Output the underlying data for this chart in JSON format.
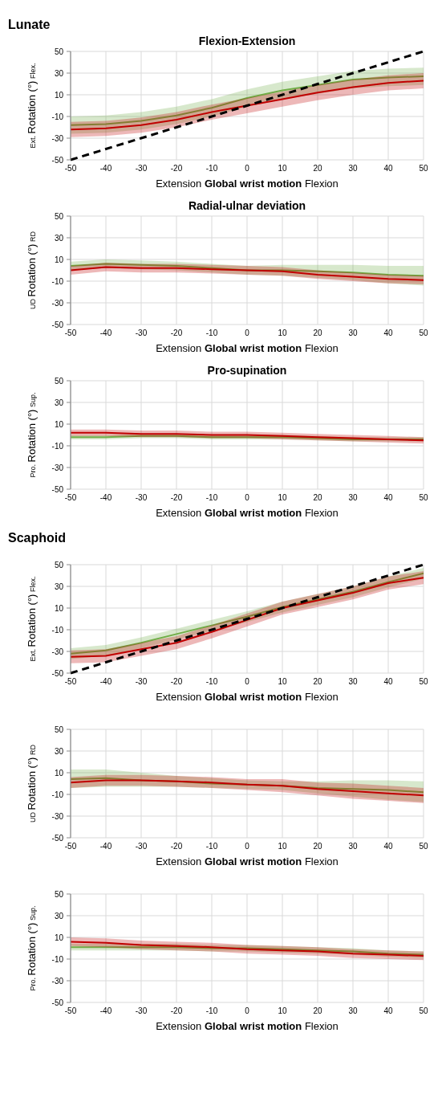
{
  "chart_data": [
    {
      "type": "line",
      "title": "Flexion-Extension",
      "xlabel": "Extension Global wrist motion Flexion",
      "ylabel": "Ext. Rotation (°) Flex.",
      "annotations": [
        "Lunate"
      ],
      "xlim": [
        -50,
        50
      ],
      "ylim": [
        -50,
        50
      ],
      "xticks": [
        -50,
        -40,
        -30,
        -20,
        -10,
        0,
        10,
        20,
        30,
        40,
        50
      ],
      "yticks": [
        50,
        30,
        10,
        -10,
        -30,
        -50
      ],
      "grid": true,
      "x": [
        -50,
        -40,
        -30,
        -20,
        -10,
        0,
        10,
        20,
        30,
        40,
        50
      ],
      "series": [
        {
          "color": "#70ad47",
          "values": [
            -18,
            -17,
            -14,
            -9,
            -2,
            7,
            14,
            19,
            24,
            26,
            27
          ],
          "lower": [
            -26,
            -25,
            -22,
            -17,
            -10,
            -1,
            6,
            11,
            16,
            18,
            19
          ],
          "upper": [
            -10,
            -9,
            -6,
            -1,
            6,
            15,
            22,
            27,
            32,
            34,
            35
          ]
        },
        {
          "color": "#c00000",
          "values": [
            -22,
            -21,
            -18,
            -13,
            -6,
            0,
            6,
            12,
            17,
            21,
            23
          ],
          "lower": [
            -29,
            -28,
            -25,
            -20,
            -13,
            -7,
            -1,
            5,
            10,
            14,
            16
          ],
          "upper": [
            -15,
            -14,
            -11,
            -6,
            1,
            7,
            13,
            19,
            24,
            28,
            30
          ]
        },
        {
          "color": "#000000",
          "line_style": "dashed",
          "values": [
            -50,
            -40,
            -30,
            -20,
            -10,
            0,
            10,
            20,
            30,
            40,
            50
          ]
        }
      ]
    },
    {
      "type": "line",
      "title": "Radial-ulnar deviation",
      "xlabel": "Extension Global wrist motion Flexion",
      "ylabel": "UD Rotation (°) RD",
      "xlim": [
        -50,
        50
      ],
      "ylim": [
        -50,
        50
      ],
      "xticks": [
        -50,
        -40,
        -30,
        -20,
        -10,
        0,
        10,
        20,
        30,
        40,
        50
      ],
      "yticks": [
        50,
        30,
        10,
        -10,
        -30,
        -50
      ],
      "grid": true,
      "x": [
        -50,
        -40,
        -30,
        -20,
        -10,
        0,
        10,
        20,
        30,
        40,
        50
      ],
      "series": [
        {
          "color": "#70ad47",
          "values": [
            4,
            6,
            5,
            4,
            2,
            0,
            0,
            -1,
            -2,
            -4,
            -5
          ],
          "lower": [
            0,
            2,
            1,
            0,
            -2,
            -4,
            -5,
            -7,
            -9,
            -12,
            -14
          ],
          "upper": [
            8,
            10,
            9,
            8,
            6,
            4,
            5,
            5,
            5,
            4,
            4
          ]
        },
        {
          "color": "#c00000",
          "values": [
            0,
            3,
            2,
            2,
            1,
            0,
            -1,
            -4,
            -6,
            -8,
            -9
          ],
          "lower": [
            -4,
            -1,
            -2,
            -2,
            -3,
            -4,
            -5,
            -8,
            -10,
            -12,
            -13
          ],
          "upper": [
            4,
            7,
            6,
            6,
            5,
            4,
            3,
            0,
            -2,
            -4,
            -5
          ]
        }
      ]
    },
    {
      "type": "line",
      "title": "Pro-supination",
      "xlabel": "Extension Global wrist motion Flexion",
      "ylabel": "Pro. Rotation (°) Sup.",
      "xlim": [
        -50,
        50
      ],
      "ylim": [
        -50,
        50
      ],
      "xticks": [
        -50,
        -40,
        -30,
        -20,
        -10,
        0,
        10,
        20,
        30,
        40,
        50
      ],
      "yticks": [
        50,
        30,
        10,
        -10,
        -30,
        -50
      ],
      "grid": true,
      "x": [
        -50,
        -40,
        -30,
        -20,
        -10,
        0,
        10,
        20,
        30,
        40,
        50
      ],
      "series": [
        {
          "color": "#70ad47",
          "values": [
            -2,
            -2,
            -1,
            -1,
            -2,
            -2,
            -2,
            -3,
            -4,
            -4,
            -4
          ],
          "lower": [
            -4,
            -4,
            -3,
            -3,
            -4,
            -4,
            -4,
            -5,
            -6,
            -6,
            -6
          ],
          "upper": [
            0,
            0,
            1,
            1,
            0,
            0,
            0,
            -1,
            -2,
            -2,
            -2
          ]
        },
        {
          "color": "#c00000",
          "values": [
            2,
            2,
            1,
            1,
            0,
            0,
            -1,
            -2,
            -3,
            -4,
            -5
          ],
          "lower": [
            -1,
            -1,
            -2,
            -2,
            -3,
            -3,
            -4,
            -5,
            -6,
            -7,
            -8
          ],
          "upper": [
            5,
            5,
            4,
            4,
            3,
            3,
            2,
            1,
            0,
            -1,
            -2
          ]
        }
      ]
    },
    {
      "type": "line",
      "xlabel": "Extension Global wrist motion Flexion",
      "ylabel": "Ext. Rotation (°) Flex.",
      "annotations": [
        "Scaphoid"
      ],
      "xlim": [
        -50,
        50
      ],
      "ylim": [
        -50,
        50
      ],
      "xticks": [
        -50,
        -40,
        -30,
        -20,
        -10,
        0,
        10,
        20,
        30,
        40,
        50
      ],
      "yticks": [
        50,
        30,
        10,
        -10,
        -30,
        -50
      ],
      "grid": true,
      "x": [
        -50,
        -40,
        -30,
        -20,
        -10,
        0,
        10,
        20,
        30,
        40,
        50
      ],
      "series": [
        {
          "color": "#70ad47",
          "values": [
            -32,
            -29,
            -22,
            -14,
            -6,
            2,
            11,
            18,
            25,
            34,
            42
          ],
          "lower": [
            -37,
            -34,
            -27,
            -19,
            -11,
            -3,
            6,
            13,
            20,
            29,
            37
          ],
          "upper": [
            -27,
            -24,
            -17,
            -9,
            -1,
            7,
            16,
            23,
            30,
            39,
            47
          ]
        },
        {
          "color": "#c00000",
          "values": [
            -35,
            -34,
            -28,
            -22,
            -12,
            -1,
            10,
            17,
            24,
            33,
            38
          ],
          "lower": [
            -41,
            -40,
            -34,
            -28,
            -18,
            -7,
            4,
            11,
            18,
            27,
            32
          ],
          "upper": [
            -29,
            -28,
            -22,
            -16,
            -6,
            5,
            16,
            23,
            30,
            39,
            44
          ]
        },
        {
          "color": "#000000",
          "line_style": "dashed",
          "values": [
            -50,
            -40,
            -30,
            -20,
            -10,
            0,
            10,
            20,
            30,
            40,
            50
          ]
        }
      ]
    },
    {
      "type": "line",
      "xlabel": "Extension Global wrist motion Flexion",
      "ylabel": "UD Rotation (°) RD",
      "xlim": [
        -50,
        50
      ],
      "ylim": [
        -50,
        50
      ],
      "xticks": [
        -50,
        -40,
        -30,
        -20,
        -10,
        0,
        10,
        20,
        30,
        40,
        50
      ],
      "yticks": [
        50,
        30,
        10,
        -10,
        -30,
        -50
      ],
      "grid": true,
      "x": [
        -50,
        -40,
        -30,
        -20,
        -10,
        0,
        10,
        20,
        30,
        40,
        50
      ],
      "series": [
        {
          "color": "#70ad47",
          "values": [
            4,
            5,
            3,
            2,
            0,
            -1,
            -2,
            -4,
            -5,
            -6,
            -8
          ],
          "lower": [
            -4,
            -3,
            -3,
            -3,
            -4,
            -5,
            -6,
            -9,
            -12,
            -15,
            -17
          ],
          "upper": [
            13,
            13,
            10,
            7,
            5,
            3,
            2,
            2,
            3,
            3,
            2
          ]
        },
        {
          "color": "#c00000",
          "values": [
            1,
            3,
            3,
            2,
            1,
            -1,
            -2,
            -5,
            -7,
            -9,
            -11
          ],
          "lower": [
            -4,
            -2,
            -2,
            -3,
            -4,
            -6,
            -8,
            -11,
            -14,
            -16,
            -18
          ],
          "upper": [
            6,
            8,
            8,
            7,
            6,
            4,
            4,
            1,
            0,
            -2,
            -4
          ]
        }
      ]
    },
    {
      "type": "line",
      "xlabel": "Extension Global wrist motion Flexion",
      "ylabel": "Pro. Rotation (°) Sup.",
      "xlim": [
        -50,
        50
      ],
      "ylim": [
        -50,
        50
      ],
      "xticks": [
        -50,
        -40,
        -30,
        -20,
        -10,
        0,
        10,
        20,
        30,
        40,
        50
      ],
      "yticks": [
        50,
        30,
        10,
        -10,
        -30,
        -50
      ],
      "grid": true,
      "x": [
        -50,
        -40,
        -30,
        -20,
        -10,
        0,
        10,
        20,
        30,
        40,
        50
      ],
      "series": [
        {
          "color": "#70ad47",
          "values": [
            1,
            1,
            1,
            1,
            0,
            0,
            -1,
            -2,
            -3,
            -5,
            -6
          ],
          "lower": [
            -2,
            -2,
            -2,
            -2,
            -3,
            -3,
            -4,
            -5,
            -6,
            -8,
            -9
          ],
          "upper": [
            4,
            4,
            4,
            4,
            3,
            3,
            2,
            1,
            0,
            -2,
            -3
          ]
        },
        {
          "color": "#c00000",
          "values": [
            6,
            5,
            3,
            2,
            1,
            -1,
            -2,
            -3,
            -5,
            -6,
            -7
          ],
          "lower": [
            2,
            1,
            -1,
            -2,
            -3,
            -5,
            -6,
            -7,
            -9,
            -10,
            -11
          ],
          "upper": [
            10,
            9,
            7,
            6,
            5,
            3,
            2,
            1,
            -1,
            -2,
            -3
          ]
        }
      ]
    }
  ]
}
